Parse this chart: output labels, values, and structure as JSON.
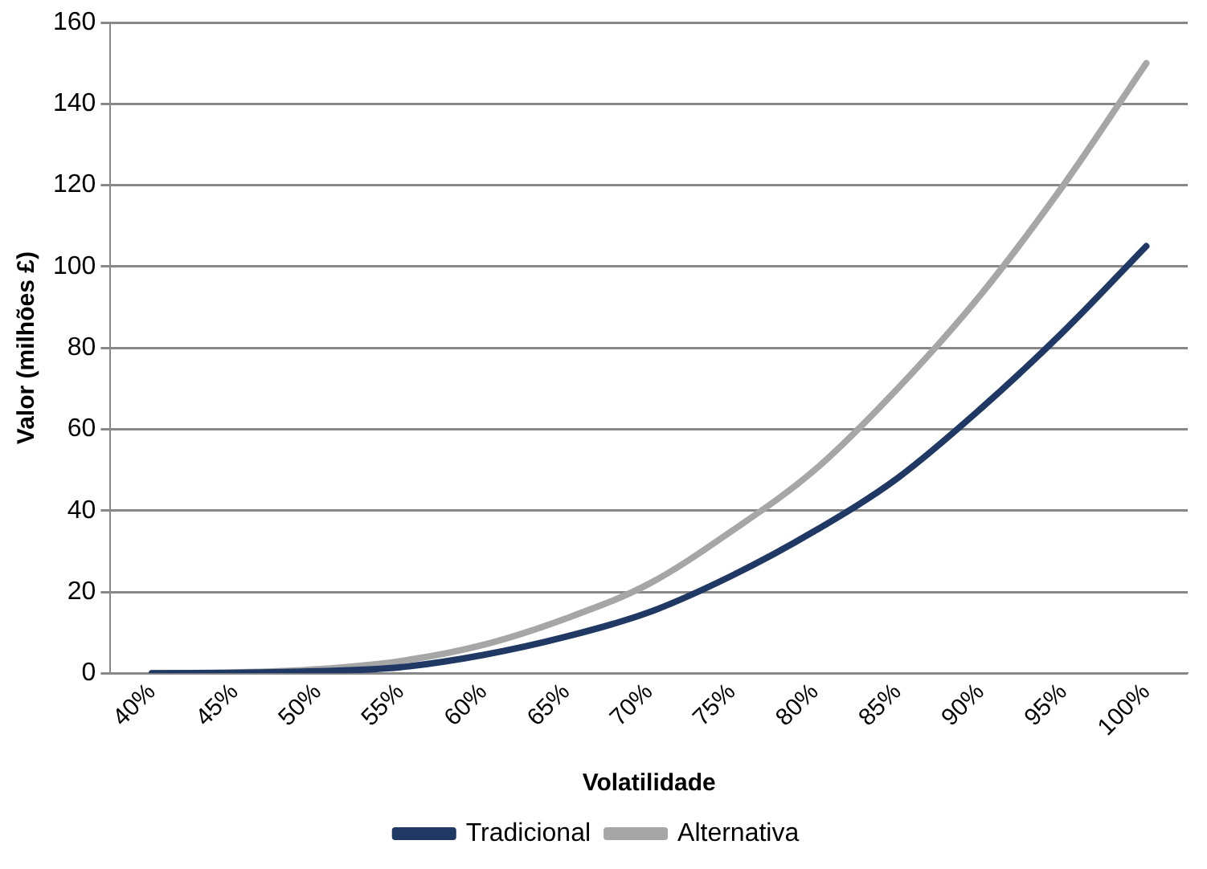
{
  "chart_data": {
    "type": "line",
    "xlabel": "Volatilidade",
    "ylabel": "Valor (milhões £)",
    "categories": [
      "40%",
      "45%",
      "50%",
      "55%",
      "60%",
      "65%",
      "70%",
      "75%",
      "80%",
      "85%",
      "90%",
      "95%",
      "100%"
    ],
    "series": [
      {
        "name": "Tradicional",
        "color": "#1f3864",
        "values": [
          0,
          0.1,
          0.5,
          1.5,
          4.5,
          9,
          15,
          24,
          35,
          48,
          65,
          84,
          105
        ]
      },
      {
        "name": "Alternativa",
        "color": "#a6a6a6",
        "values": [
          0,
          0.2,
          1,
          3,
          7,
          13.5,
          22,
          35,
          50,
          70,
          93,
          120,
          150
        ]
      }
    ],
    "ylim": [
      0,
      160
    ],
    "yticks": [
      0,
      20,
      40,
      60,
      80,
      100,
      120,
      140,
      160
    ],
    "grid": "y",
    "legend": "bottom",
    "marker": "none",
    "line_style": "solid"
  }
}
